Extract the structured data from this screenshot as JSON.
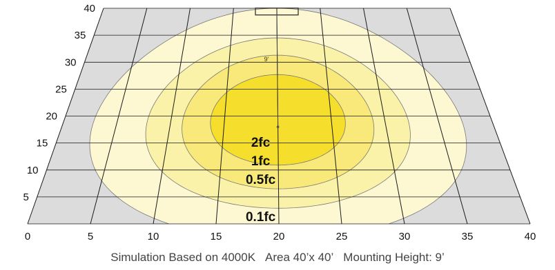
{
  "diagram": {
    "type": "isofootcandle-plot",
    "x_axis_ticks": [
      "0",
      "5",
      "10",
      "15",
      "20",
      "25",
      "30",
      "35",
      "40"
    ],
    "y_axis_ticks": [
      "5",
      "10",
      "15",
      "20",
      "25",
      "30",
      "35",
      "40"
    ],
    "range": {
      "x": [
        0,
        40
      ],
      "y": [
        0,
        40
      ]
    },
    "fixture": {
      "x": 20,
      "y": 39.4
    },
    "aim_point": {
      "x": 20,
      "y": 18
    },
    "mounting_label": "9’",
    "contours": [
      {
        "label": "0.1fc",
        "color": "#fdf8d2",
        "center": [
          20,
          18.5
        ],
        "rx": 17.2,
        "ry": 21.5
      },
      {
        "label": "0.5fc",
        "color": "#fbf2a9",
        "center": [
          20,
          18.7
        ],
        "rx": 12.2,
        "ry": 15.8
      },
      {
        "label": "1fc",
        "color": "#f9e97a",
        "center": [
          20,
          18.9
        ],
        "rx": 8.9,
        "ry": 12.4
      },
      {
        "label": "2fc",
        "color": "#f6df2c",
        "center": [
          20,
          19.3
        ],
        "rx": 6.3,
        "ry": 8.4
      }
    ],
    "colors": {
      "floor": "#dcdcdc",
      "grid": "#1a1a1a",
      "outline": "#777777"
    }
  },
  "caption": {
    "simulation": "Simulation Based on 4000K",
    "area": "Area 40’x 40’",
    "mounting": "Mounting Height: 9’"
  }
}
